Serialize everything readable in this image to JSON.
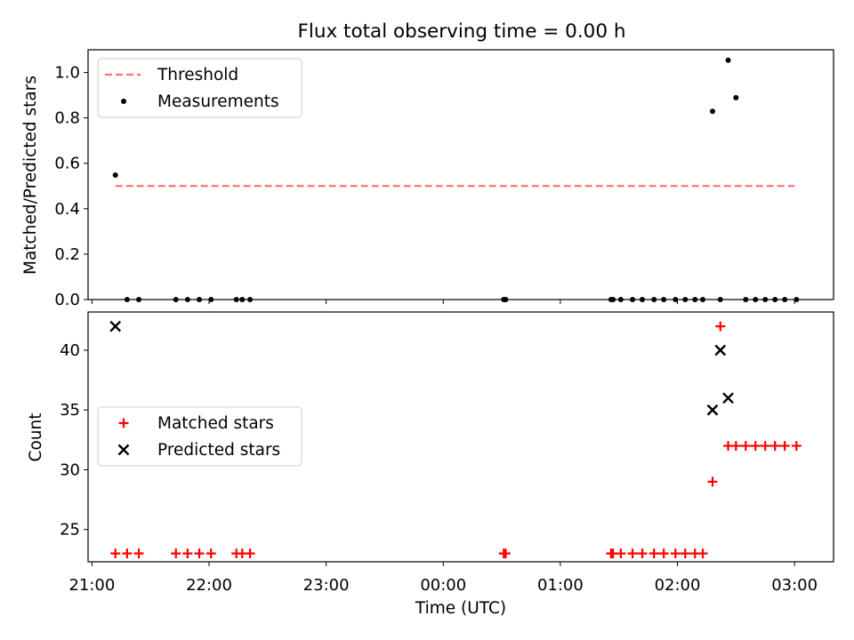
{
  "title": "Flux total observing time = 0.00 h",
  "colors": {
    "threshold": "#ff7373",
    "measurement": "#000000",
    "matched": "#ff0000",
    "predicted": "#000000"
  },
  "chart_data": [
    {
      "type": "scatter",
      "panel": "top",
      "title": "Flux total observing time = 0.00 h",
      "xlabel": "",
      "ylabel": "Matched/Predicted stars",
      "x_type": "time",
      "x_ticks": [
        "21:00",
        "22:00",
        "23:00",
        "00:00",
        "01:00",
        "02:00",
        "03:00"
      ],
      "x_range": [
        "20:58",
        "03:20"
      ],
      "ylim": [
        0,
        1.1
      ],
      "y_ticks": [
        "0.0",
        "0.2",
        "0.4",
        "0.6",
        "0.8",
        "1.0"
      ],
      "legend": {
        "position": "upper left",
        "entries": [
          "Threshold",
          "Measurements"
        ]
      },
      "series": [
        {
          "name": "Threshold",
          "style": "dashed-line",
          "x": [
            "21:12",
            "03:00"
          ],
          "y": [
            0.5,
            0.5
          ]
        },
        {
          "name": "Measurements",
          "style": "dot",
          "x": [
            "21:12",
            "21:18",
            "21:24",
            "21:43",
            "21:49",
            "21:55",
            "22:01",
            "22:14",
            "22:17",
            "22:21",
            "00:31",
            "00:32",
            "01:26",
            "01:27",
            "01:31",
            "01:37",
            "01:42",
            "01:48",
            "01:53",
            "01:59",
            "02:04",
            "02:09",
            "02:13",
            "02:18",
            "02:22",
            "02:26",
            "02:30",
            "02:35",
            "02:40",
            "02:45",
            "02:50",
            "02:55",
            "03:01"
          ],
          "y": [
            0.548,
            0,
            0,
            0,
            0,
            0,
            0,
            0,
            0,
            0,
            0,
            0,
            0,
            0,
            0,
            0,
            0,
            0,
            0,
            0,
            0,
            0,
            0,
            0.829,
            0,
            1.054,
            0.889,
            0,
            0,
            0,
            0,
            0,
            0
          ]
        }
      ]
    },
    {
      "type": "scatter",
      "panel": "bottom",
      "xlabel": "Time (UTC)",
      "ylabel": "Count",
      "x_type": "time",
      "x_ticks": [
        "21:00",
        "22:00",
        "23:00",
        "00:00",
        "01:00",
        "02:00",
        "03:00"
      ],
      "x_range": [
        "20:58",
        "03:20"
      ],
      "ylim": [
        22.3,
        43.2
      ],
      "y_ticks": [
        "25",
        "30",
        "35",
        "40"
      ],
      "legend": {
        "position": "center left",
        "entries": [
          "Matched stars",
          "Predicted stars"
        ]
      },
      "series": [
        {
          "name": "Matched stars",
          "marker": "plus",
          "x": [
            "21:12",
            "21:18",
            "21:24",
            "21:43",
            "21:49",
            "21:55",
            "22:01",
            "22:14",
            "22:17",
            "22:21",
            "00:31",
            "00:32",
            "01:26",
            "01:27",
            "01:31",
            "01:37",
            "01:42",
            "01:48",
            "01:53",
            "01:59",
            "02:04",
            "02:09",
            "02:13",
            "02:18",
            "02:22",
            "02:26",
            "02:30",
            "02:35",
            "02:40",
            "02:45",
            "02:50",
            "02:55",
            "03:01"
          ],
          "y": [
            23,
            23,
            23,
            23,
            23,
            23,
            23,
            23,
            23,
            23,
            23,
            23,
            23,
            23,
            23,
            23,
            23,
            23,
            23,
            23,
            23,
            23,
            23,
            29,
            42,
            32,
            32,
            32,
            32,
            32,
            32,
            32,
            32
          ]
        },
        {
          "name": "Predicted stars",
          "marker": "x",
          "x": [
            "21:12",
            "02:18",
            "02:22",
            "02:26"
          ],
          "y": [
            42,
            35,
            40,
            36
          ]
        }
      ]
    }
  ]
}
